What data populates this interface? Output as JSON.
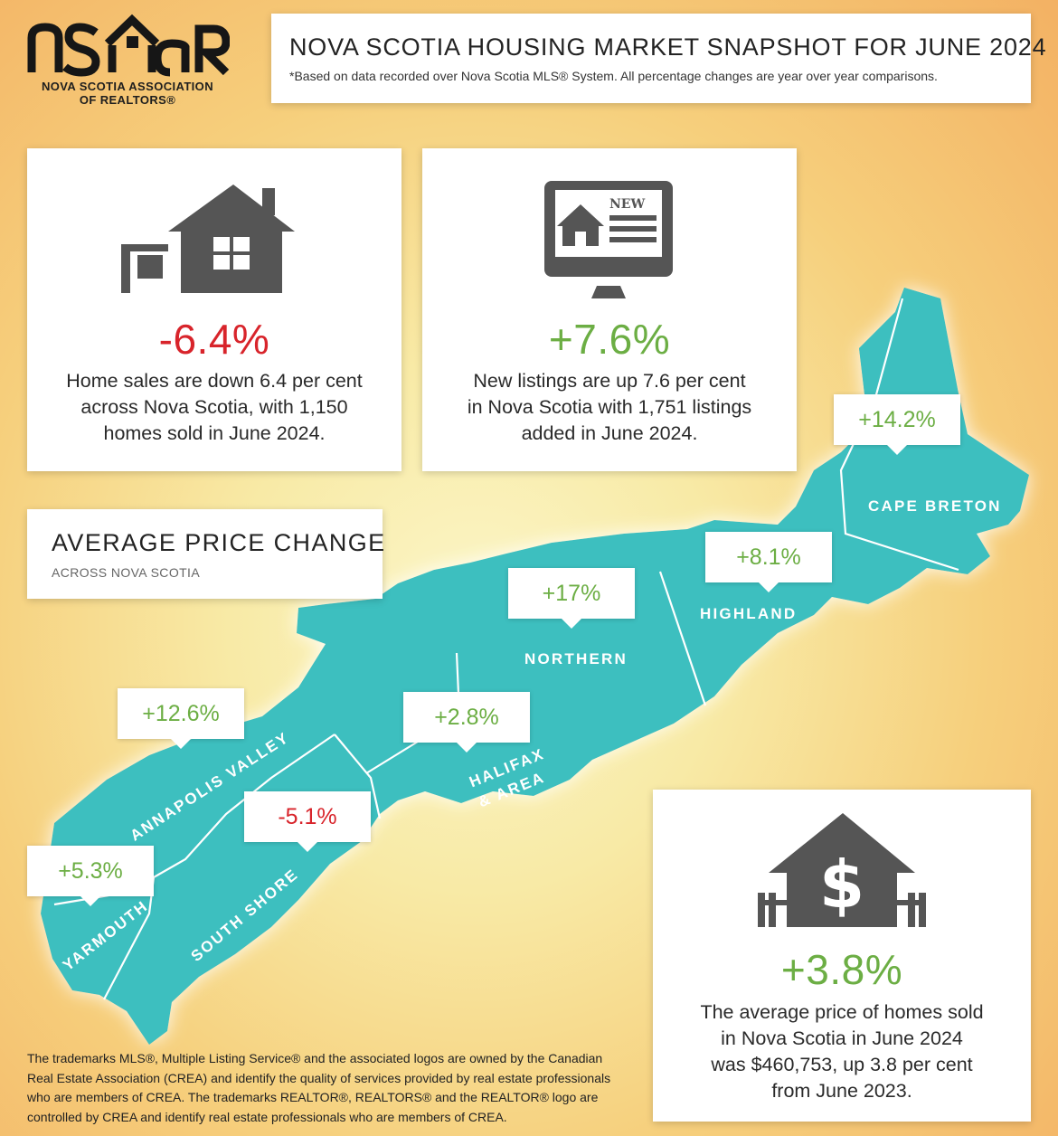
{
  "logo": {
    "wordmark": "nsar",
    "line1": "NOVA SCOTIA ASSOCIATION",
    "line2": "OF REALTORS®"
  },
  "header": {
    "title": "NOVA SCOTIA HOUSING MARKET SNAPSHOT FOR JUNE 2024",
    "subtitle": "*Based on data recorded over Nova Scotia MLS® System. All percentage changes are year over year comparisons."
  },
  "sales": {
    "icon": "house-for-sale-icon",
    "stat": "-6.4%",
    "line1": "Home sales are down 6.4 per cent",
    "line2": "across Nova Scotia, with 1,150",
    "line3": "homes sold in June 2024."
  },
  "listings": {
    "icon": "monitor-new-listing-icon",
    "badge": "NEW",
    "stat": "+7.6%",
    "line1": "New listings are up 7.6 per cent",
    "line2": "in Nova Scotia with 1,751 listings",
    "line3": "added in June 2024."
  },
  "price_change": {
    "title": "AVERAGE PRICE CHANGE",
    "subtitle": "ACROSS NOVA SCOTIA"
  },
  "regions": [
    {
      "name": "CAPE BRETON",
      "change": "+14.2%"
    },
    {
      "name": "HIGHLAND",
      "change": "+8.1%"
    },
    {
      "name": "NORTHERN",
      "change": "+17%"
    },
    {
      "name": "HALIFAX",
      "name2": "& AREA",
      "change": "+2.8%"
    },
    {
      "name": "ANNAPOLIS VALLEY",
      "change": "+12.6%"
    },
    {
      "name": "SOUTH SHORE",
      "change": "-5.1%"
    },
    {
      "name": "YARMOUTH",
      "change": "+5.3%"
    }
  ],
  "average_price": {
    "icon": "house-dollar-icon",
    "stat": "+3.8%",
    "line1": "The average price of homes sold",
    "line2": "in Nova Scotia in June 2024",
    "line3": "was $460,753, up 3.8 per cent",
    "line4": "from June 2023."
  },
  "footer": {
    "line1": "The trademarks MLS®, Multiple Listing Service® and the associated logos are owned by the Canadian",
    "line2": "Real Estate Association (CREA) and identify the quality of services provided by real estate professionals",
    "line3": "who are members of CREA. The trademarks REALTOR®, REALTORS® and the REALTOR® logo are",
    "line4": "controlled by CREA and identify real estate professionals who are members of CREA."
  },
  "colors": {
    "map": "#3cbfbf",
    "negative": "#d8242b",
    "positive": "#6cae44",
    "icon": "#555555"
  }
}
